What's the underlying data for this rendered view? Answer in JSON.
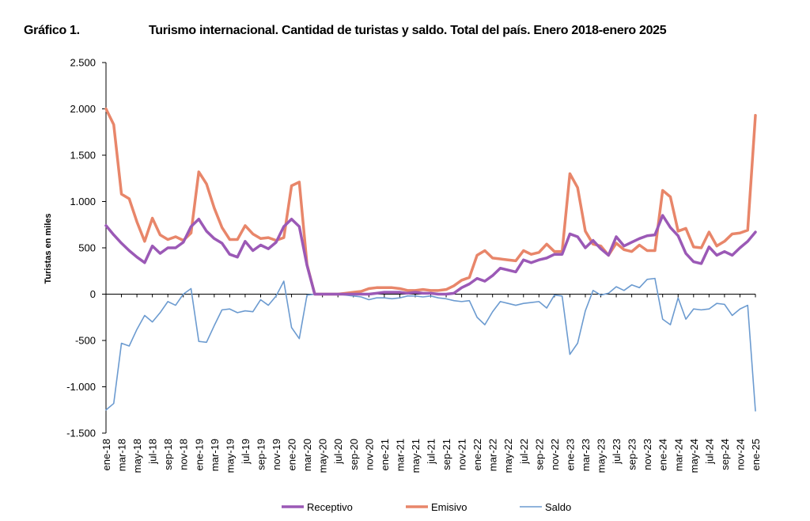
{
  "header": {
    "figure_label": "Gráfico 1.",
    "title": "Turismo internacional. Cantidad de turistas y saldo. Total del país. Enero 2018-enero 2025"
  },
  "chart_data": {
    "type": "line",
    "ylabel": "Turistas en miles",
    "xlabel": "",
    "ylim": [
      -1500,
      2500
    ],
    "yticks": [
      2500,
      2000,
      1500,
      1000,
      500,
      0,
      -500,
      -1000,
      -1500
    ],
    "ytick_labels": [
      "2.500",
      "2.000",
      "1.500",
      "1.000",
      "500",
      "0",
      "-500",
      "-1.000",
      "-1.500"
    ],
    "grid": false,
    "legend_position": "bottom",
    "x": [
      "ene-18",
      "feb-18",
      "mar-18",
      "abr-18",
      "may-18",
      "jun-18",
      "jul-18",
      "ago-18",
      "sep-18",
      "oct-18",
      "nov-18",
      "dic-18",
      "ene-19",
      "feb-19",
      "mar-19",
      "abr-19",
      "may-19",
      "jun-19",
      "jul-19",
      "ago-19",
      "sep-19",
      "oct-19",
      "nov-19",
      "dic-19",
      "ene-20",
      "feb-20",
      "mar-20",
      "abr-20",
      "may-20",
      "jun-20",
      "jul-20",
      "ago-20",
      "sep-20",
      "oct-20",
      "nov-20",
      "dic-20",
      "ene-21",
      "feb-21",
      "mar-21",
      "abr-21",
      "may-21",
      "jun-21",
      "jul-21",
      "ago-21",
      "sep-21",
      "oct-21",
      "nov-21",
      "dic-21",
      "ene-22",
      "feb-22",
      "mar-22",
      "abr-22",
      "may-22",
      "jun-22",
      "jul-22",
      "ago-22",
      "sep-22",
      "oct-22",
      "nov-22",
      "dic-22",
      "ene-23",
      "feb-23",
      "mar-23",
      "abr-23",
      "may-23",
      "jun-23",
      "jul-23",
      "ago-23",
      "sep-23",
      "oct-23",
      "nov-23",
      "dic-23",
      "ene-24",
      "feb-24",
      "mar-24",
      "abr-24",
      "may-24",
      "jun-24",
      "jul-24",
      "ago-24",
      "sep-24",
      "oct-24",
      "nov-24",
      "dic-24",
      "ene-25"
    ],
    "xtick_labels": [
      "ene-18",
      "mar-18",
      "may-18",
      "jul-18",
      "sep-18",
      "nov-18",
      "ene-19",
      "mar-19",
      "may-19",
      "jul-19",
      "sep-19",
      "nov-19",
      "ene-20",
      "mar-20",
      "may-20",
      "jul-20",
      "sep-20",
      "nov-20",
      "ene-21",
      "mar-21",
      "may-21",
      "jul-21",
      "sep-21",
      "nov-21",
      "ene-22",
      "mar-22",
      "may-22",
      "jul-22",
      "sep-22",
      "nov-22",
      "ene-23",
      "mar-23",
      "may-23",
      "jul-23",
      "sep-23",
      "nov-23",
      "ene-24",
      "mar-24",
      "may-24",
      "jul-24",
      "sep-24",
      "nov-24",
      "ene-25"
    ],
    "series": [
      {
        "name": "Receptivo",
        "color": "#9b59b6",
        "width": 3.5,
        "values": [
          740,
          640,
          550,
          470,
          400,
          340,
          520,
          440,
          500,
          500,
          560,
          730,
          810,
          680,
          600,
          550,
          430,
          400,
          570,
          470,
          530,
          490,
          560,
          730,
          810,
          730,
          310,
          0,
          0,
          0,
          0,
          0,
          0,
          0,
          0,
          10,
          20,
          20,
          20,
          10,
          20,
          10,
          10,
          0,
          0,
          10,
          70,
          110,
          170,
          140,
          200,
          280,
          260,
          240,
          370,
          340,
          370,
          390,
          430,
          430,
          650,
          620,
          500,
          580,
          490,
          420,
          620,
          520,
          560,
          600,
          630,
          640,
          850,
          720,
          630,
          440,
          350,
          330,
          510,
          420,
          460,
          420,
          500,
          570,
          670
        ]
      },
      {
        "name": "Emisivo",
        "color": "#e8866a",
        "width": 3.5,
        "values": [
          2000,
          1830,
          1080,
          1030,
          780,
          570,
          820,
          640,
          590,
          620,
          580,
          660,
          1320,
          1190,
          930,
          720,
          590,
          590,
          740,
          650,
          600,
          610,
          580,
          610,
          1170,
          1210,
          320,
          0,
          0,
          0,
          0,
          10,
          20,
          30,
          60,
          70,
          70,
          70,
          60,
          40,
          40,
          50,
          40,
          40,
          50,
          90,
          150,
          180,
          420,
          470,
          390,
          380,
          370,
          360,
          470,
          430,
          450,
          540,
          460,
          460,
          1300,
          1150,
          680,
          540,
          520,
          420,
          550,
          480,
          460,
          530,
          470,
          470,
          1120,
          1050,
          680,
          710,
          510,
          500,
          670,
          520,
          570,
          650,
          660,
          690,
          1930
        ]
      },
      {
        "name": "Saldo",
        "color": "#6c9bd0",
        "width": 1.6,
        "values": [
          -1250,
          -1180,
          -530,
          -560,
          -380,
          -230,
          -300,
          -200,
          -80,
          -120,
          0,
          60,
          -510,
          -520,
          -340,
          -170,
          -160,
          -200,
          -180,
          -190,
          -60,
          -120,
          -20,
          140,
          -360,
          -480,
          -10,
          0,
          0,
          0,
          0,
          -10,
          -20,
          -30,
          -60,
          -40,
          -40,
          -50,
          -40,
          -20,
          -20,
          -30,
          -20,
          -40,
          -50,
          -70,
          -80,
          -70,
          -250,
          -330,
          -190,
          -80,
          -100,
          -120,
          -100,
          -90,
          -80,
          -150,
          -10,
          -20,
          -650,
          -530,
          -180,
          40,
          -10,
          10,
          80,
          40,
          100,
          70,
          160,
          170,
          -270,
          -330,
          -40,
          -270,
          -160,
          -170,
          -160,
          -100,
          -110,
          -230,
          -160,
          -120,
          -1260
        ]
      }
    ]
  }
}
